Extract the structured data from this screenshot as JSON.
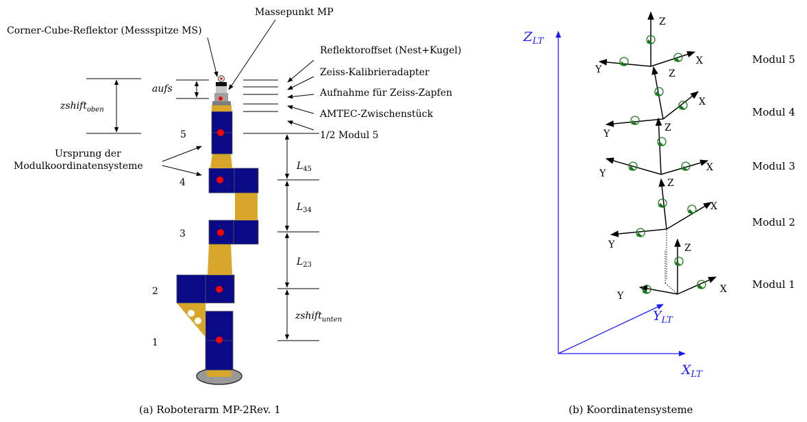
{
  "left": {
    "labels": {
      "corner_cube": "Corner-Cube-Reflektor (Messspitze MS)",
      "massepunkt": "Massepunkt MP",
      "reflektoroffset": "Reflektoroffset (Nest+Kugel)",
      "zeiss_kalib": "Zeiss-Kalibrieradapter",
      "aufnahme": "Aufnahme für Zeiss-Zapfen",
      "amtec": "AMTEC-Zwischenstück",
      "half_modul": "1/2 Modul 5",
      "ursprung_line1": "Ursprung der",
      "ursprung_line2": "Modulkoordinatensysteme"
    },
    "dims": {
      "zshift_oben": "zshift",
      "zshift_oben_sub": "oben",
      "aufs": "aufs",
      "l45": "L",
      "l45_sub": "45",
      "l34": "L",
      "l34_sub": "34",
      "l23": "L",
      "l23_sub": "23",
      "zshift_unten": "zshift",
      "zshift_unten_sub": "unten"
    },
    "module_numbers": [
      "5",
      "4",
      "3",
      "2",
      "1"
    ],
    "caption": "(a) Roboterarm MP-2Rev. 1"
  },
  "right": {
    "axes": {
      "z": "Z",
      "z_sub": "LT",
      "y": "Y",
      "y_sub": "LT",
      "x": "X",
      "x_sub": "LT"
    },
    "frame_labels": {
      "x": "X",
      "y": "Y",
      "z": "Z"
    },
    "modules": [
      "Modul 5",
      "Modul 4",
      "Modul 3",
      "Modul 2",
      "Modul 1"
    ],
    "caption": "(b) Koordinatensysteme"
  },
  "colors": {
    "navy": "#0a0a87",
    "gold": "#d8a62a",
    "red": "#ff0000",
    "blue_axes": "#1a1aff",
    "green": "#1a7a1a"
  }
}
